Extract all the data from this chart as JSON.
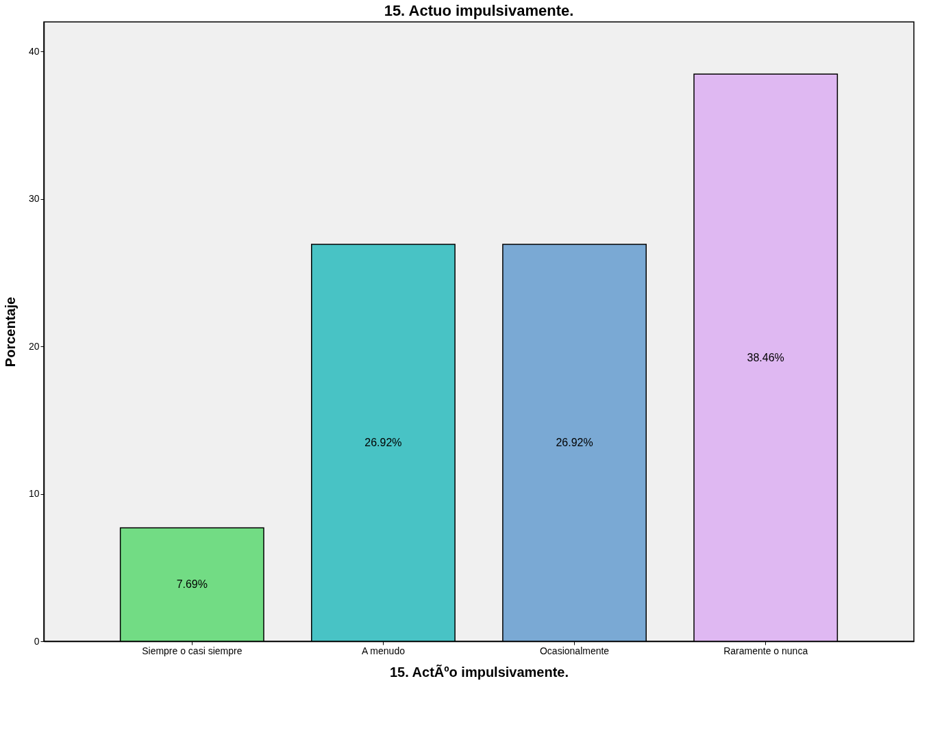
{
  "chart_data": {
    "type": "bar",
    "title": "15. Actuo impulsivamente.",
    "xlabel": "15. ActÃºo impulsivamente.",
    "ylabel": "Porcentaje",
    "categories": [
      "Siempre o casi siempre",
      "A menudo",
      "Ocasionalmente",
      "Raramente o nunca"
    ],
    "values": [
      7.69,
      26.92,
      26.92,
      38.46
    ],
    "colors": [
      "#72dc84",
      "#48c3c5",
      "#7aa9d4",
      "#dfb8f2"
    ],
    "value_labels": [
      "7.69%",
      "26.92%",
      "26.92%",
      "38.46%"
    ],
    "ylim": [
      0,
      42
    ],
    "yticks": [
      0,
      10,
      20,
      30,
      40
    ],
    "grid": false
  }
}
